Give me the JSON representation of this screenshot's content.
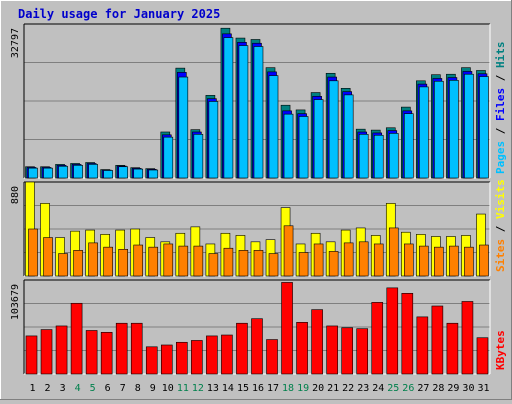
{
  "title": "Daily usage for January 2025",
  "colors": {
    "background": "#c0c0c0",
    "plot_background": "#c0c0c0",
    "grid": "#7f7f7f",
    "hits": "#008080",
    "files": "#0000ff",
    "pages": "#00c0ff",
    "visits": "#ff8000",
    "sites": "#ffff00",
    "kbytes": "#ff0000",
    "title": "#0000cc",
    "weekend_label": "#00804c",
    "weekday_label": "#000000"
  },
  "chart_data": [
    {
      "type": "bar",
      "name": "hits-files-pages",
      "ylabel_max": "32797",
      "ylim": [
        0,
        32797
      ],
      "legend_labels": [
        "Pages",
        "Files",
        "Hits"
      ],
      "legend_colors": [
        "#00c0ff",
        "#0000ff",
        "#008080"
      ],
      "categories": [
        "1",
        "2",
        "3",
        "4",
        "5",
        "6",
        "7",
        "8",
        "9",
        "10",
        "11",
        "12",
        "13",
        "14",
        "15",
        "16",
        "17",
        "18",
        "19",
        "20",
        "21",
        "22",
        "23",
        "24",
        "25",
        "26",
        "27",
        "28",
        "29",
        "30",
        "31"
      ],
      "series": [
        {
          "name": "Hits",
          "values": [
            2400,
            2400,
            2900,
            3100,
            3300,
            1800,
            2700,
            2200,
            2000,
            9800,
            23400,
            10300,
            17600,
            31900,
            29800,
            29500,
            23500,
            15500,
            14500,
            18200,
            22300,
            19100,
            10400,
            10200,
            10700,
            15100,
            20700,
            22000,
            22100,
            23500,
            22900
          ]
        },
        {
          "name": "Files",
          "values": [
            2250,
            2250,
            2700,
            2900,
            3100,
            1700,
            2550,
            2050,
            1850,
            9200,
            22500,
            9800,
            16900,
            30700,
            28900,
            28700,
            22600,
            14300,
            13700,
            17400,
            21500,
            18400,
            9800,
            9600,
            10100,
            14300,
            20000,
            21200,
            21400,
            22700,
            22200
          ]
        },
        {
          "name": "Pages",
          "values": [
            2100,
            2100,
            2500,
            2700,
            2900,
            1600,
            2400,
            1900,
            1700,
            8700,
            21500,
            9300,
            16300,
            29900,
            28200,
            28000,
            21800,
            13600,
            13100,
            16700,
            20700,
            17700,
            9300,
            9100,
            9500,
            13700,
            19400,
            20600,
            20800,
            22100,
            21600
          ]
        }
      ]
    },
    {
      "type": "bar",
      "name": "visits-sites",
      "ylabel_max": "880",
      "ylim": [
        0,
        880
      ],
      "legend_labels": [
        "Sites",
        "Visits"
      ],
      "legend_colors": [
        "#ff8000",
        "#ffff00"
      ],
      "categories": [
        "1",
        "2",
        "3",
        "4",
        "5",
        "6",
        "7",
        "8",
        "9",
        "10",
        "11",
        "12",
        "13",
        "14",
        "15",
        "16",
        "17",
        "18",
        "19",
        "20",
        "21",
        "22",
        "23",
        "24",
        "25",
        "26",
        "27",
        "28",
        "29",
        "30",
        "31"
      ],
      "series": [
        {
          "name": "Visits",
          "values": [
            880,
            680,
            360,
            420,
            430,
            390,
            430,
            440,
            360,
            320,
            400,
            460,
            300,
            400,
            380,
            320,
            340,
            640,
            300,
            400,
            320,
            430,
            450,
            380,
            680,
            410,
            390,
            370,
            370,
            380,
            580
          ]
        },
        {
          "name": "Sites",
          "values": [
            440,
            360,
            210,
            240,
            310,
            270,
            250,
            290,
            270,
            300,
            280,
            280,
            210,
            260,
            240,
            240,
            210,
            470,
            220,
            300,
            230,
            310,
            320,
            300,
            450,
            300,
            280,
            270,
            280,
            270,
            290
          ]
        }
      ]
    },
    {
      "type": "bar",
      "name": "kbytes",
      "ylabel_max": "103679",
      "ylim": [
        0,
        103679
      ],
      "legend_labels": [
        "KBytes"
      ],
      "legend_colors": [
        "#ff0000"
      ],
      "categories": [
        "1",
        "2",
        "3",
        "4",
        "5",
        "6",
        "7",
        "8",
        "9",
        "10",
        "11",
        "12",
        "13",
        "14",
        "15",
        "16",
        "17",
        "18",
        "19",
        "20",
        "21",
        "22",
        "23",
        "24",
        "25",
        "26",
        "27",
        "28",
        "29",
        "30",
        "31"
      ],
      "series": [
        {
          "name": "KBytes",
          "values": [
            42000,
            49000,
            53000,
            78000,
            48000,
            46000,
            56000,
            56000,
            30000,
            32000,
            35000,
            37000,
            42000,
            43000,
            56000,
            61000,
            38000,
            101000,
            57000,
            71000,
            53000,
            51000,
            50000,
            79000,
            95000,
            89000,
            63000,
            75000,
            56000,
            80000,
            40000
          ]
        }
      ]
    }
  ],
  "x_labels": [
    "1",
    "2",
    "3",
    "4",
    "5",
    "6",
    "7",
    "8",
    "9",
    "10",
    "11",
    "12",
    "13",
    "14",
    "15",
    "16",
    "17",
    "18",
    "19",
    "20",
    "21",
    "22",
    "23",
    "24",
    "25",
    "26",
    "27",
    "28",
    "29",
    "30",
    "31"
  ],
  "weekend_days": [
    4,
    5,
    11,
    12,
    18,
    19,
    25,
    26
  ]
}
